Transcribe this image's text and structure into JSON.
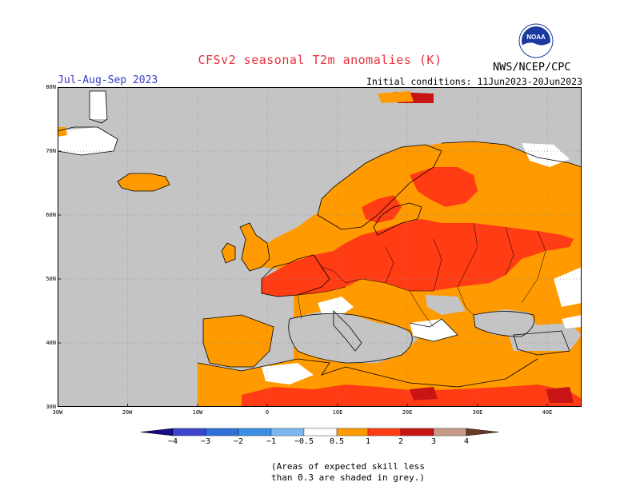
{
  "header": {
    "title": "CFSv2 seasonal T2m anomalies (K)",
    "period": "Jul-Aug-Sep 2023",
    "initial_conditions": "Initial conditions: 11Jun2023-20Jun2023",
    "agency": "NWS/NCEP/CPC",
    "logo_text": "NOAA"
  },
  "map": {
    "lat_labels": [
      "80N",
      "70N",
      "60N",
      "50N",
      "40N",
      "30N"
    ],
    "lon_labels": [
      "30W",
      "20W",
      "10W",
      "0",
      "10E",
      "20E",
      "30E",
      "40E"
    ]
  },
  "colorbar": {
    "labels": [
      "−4",
      "−3",
      "−2",
      "−1",
      "−0.5",
      "0.5",
      "1",
      "2",
      "3",
      "4"
    ],
    "colors": [
      "#2a18b0",
      "#3a44cc",
      "#2f6fd8",
      "#3c8fe4",
      "#7cb8f0",
      "#ffffff",
      "#ff9a00",
      "#ff3c14",
      "#c81414",
      "#c89a88",
      "#7a4838"
    ],
    "left_end_color": "#1a0a88",
    "right_end_color": "#6a3a28"
  },
  "colors": {
    "grey_mask": "#c4c4c4",
    "warm_05_1": "#ff9a00",
    "warm_1_2": "#ff3c14",
    "warm_2_3": "#c81414",
    "title_red": "#e8303a",
    "period_blue": "#3a3ac8"
  },
  "note": {
    "line1": "(Areas of expected skill less",
    "line2": "than 0.3 are shaded in grey.)"
  }
}
